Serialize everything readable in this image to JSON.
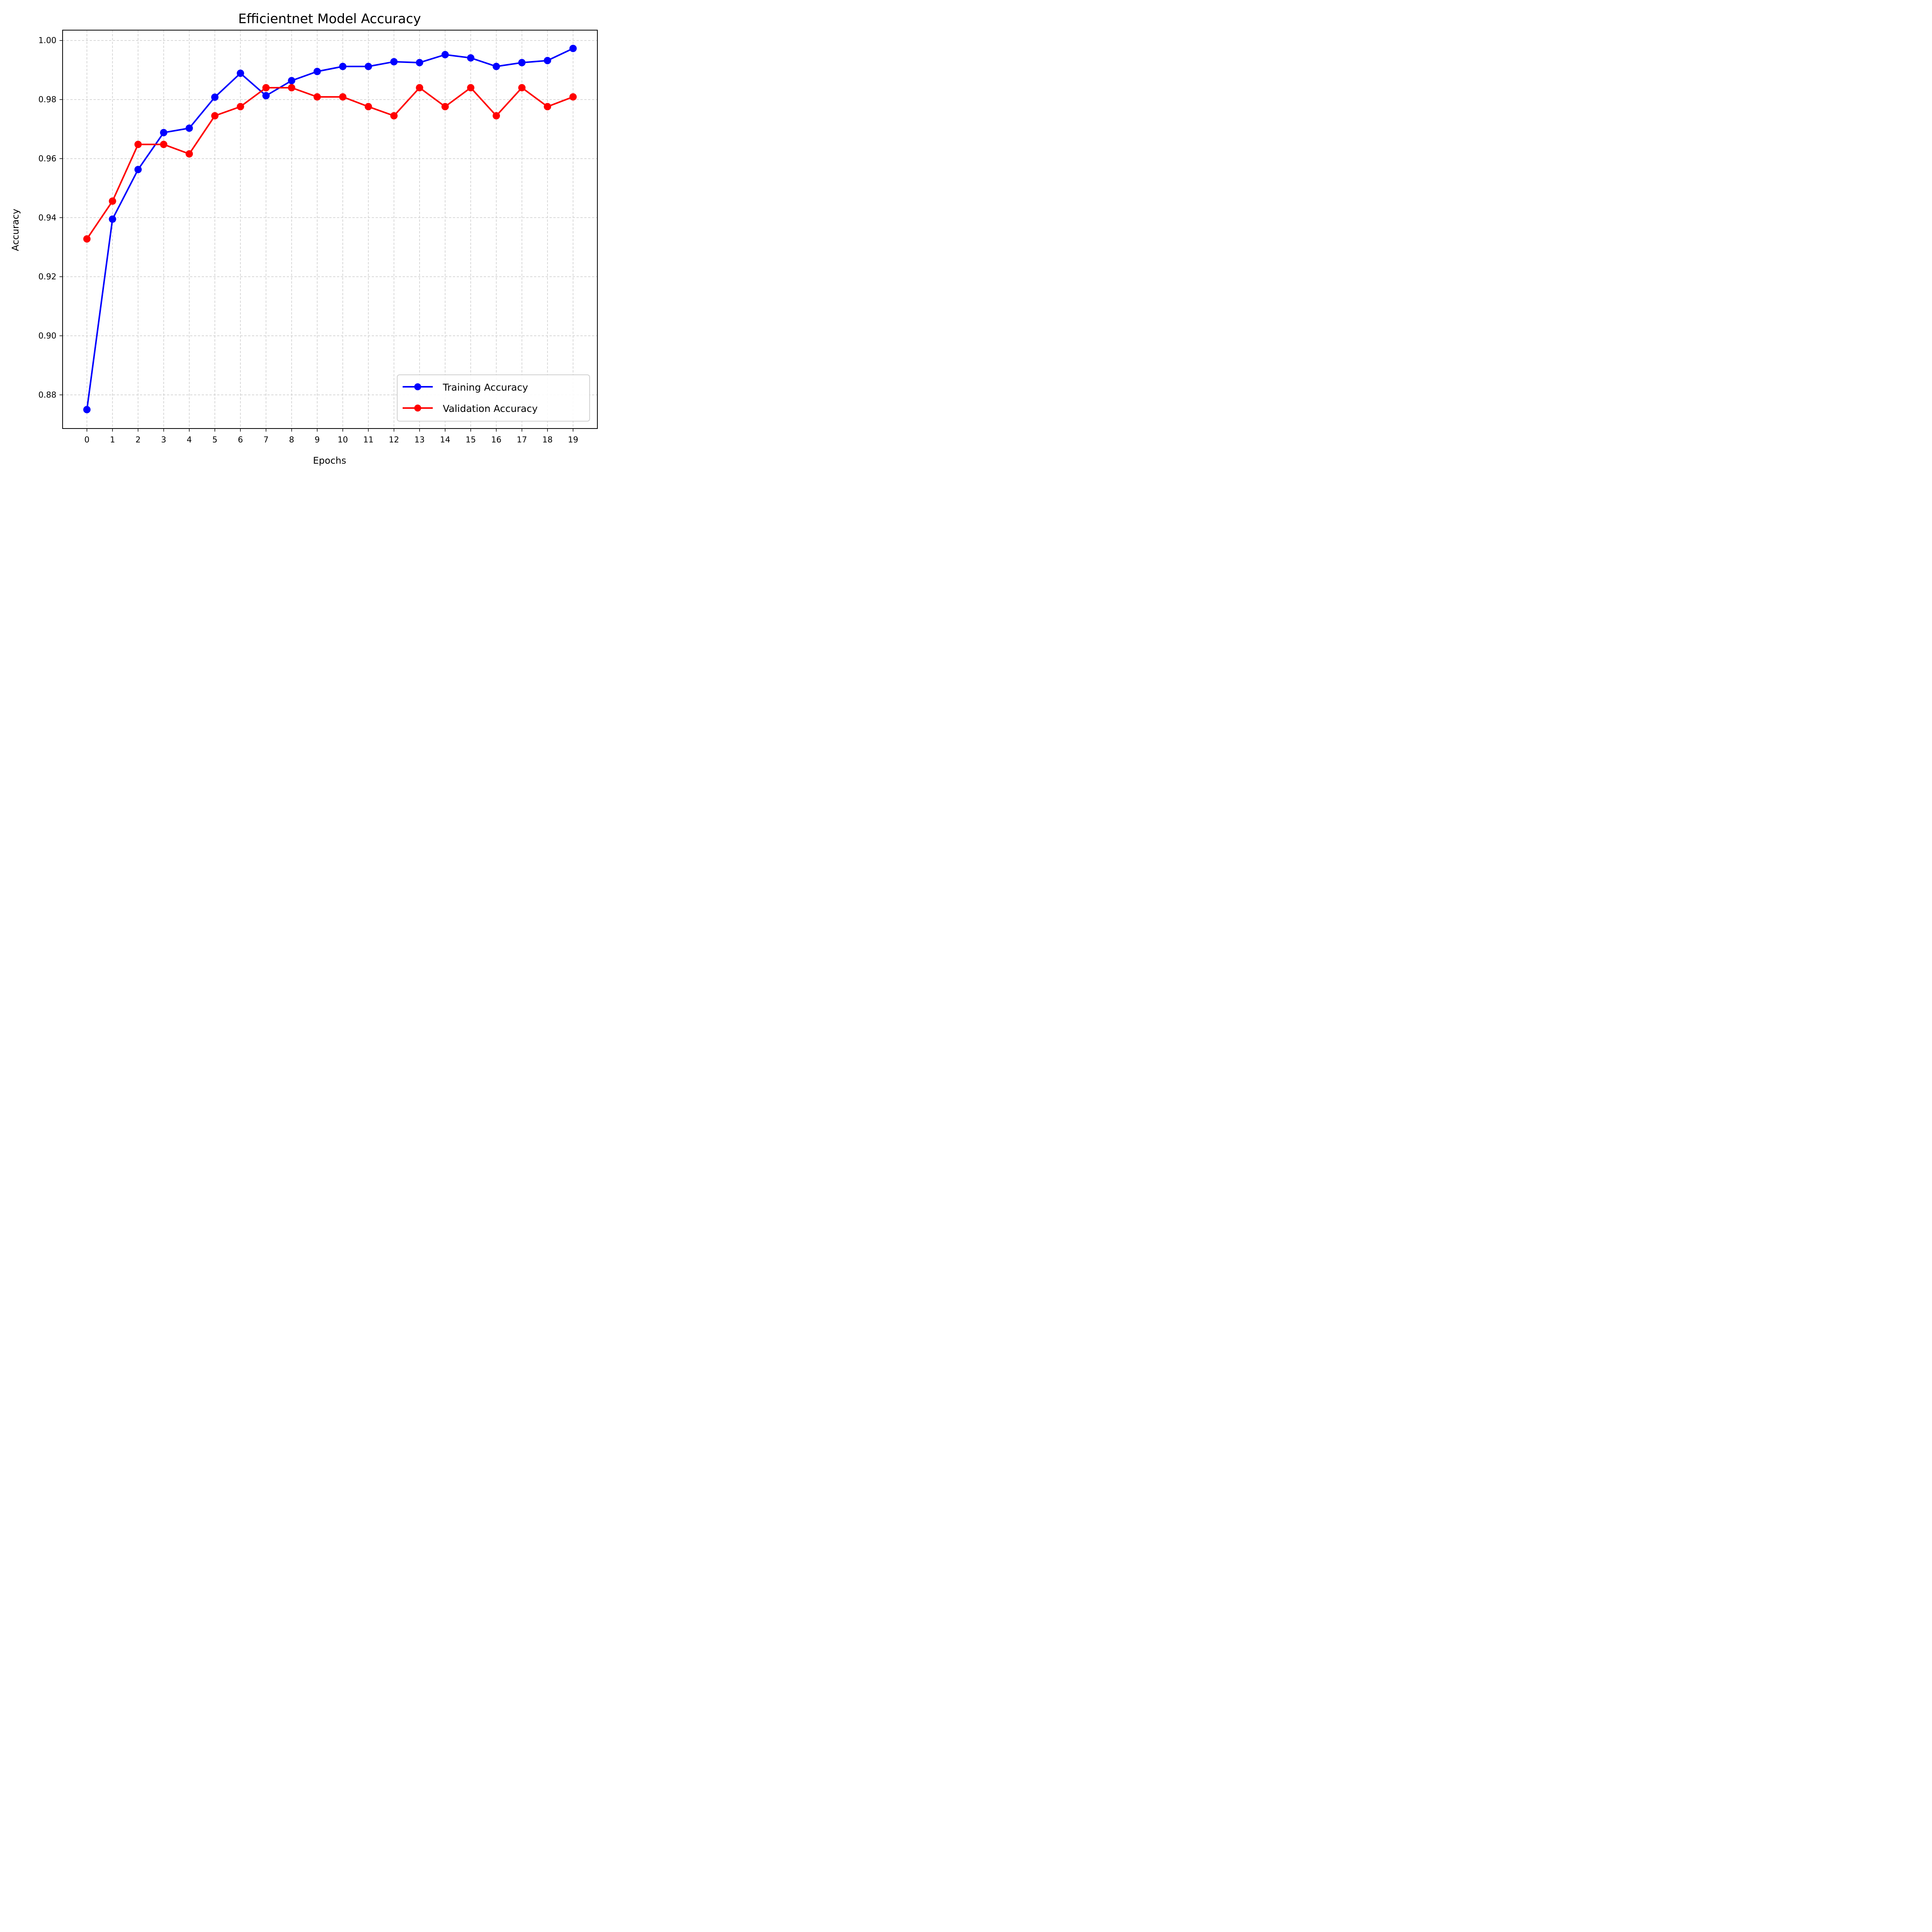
{
  "chart_data": {
    "type": "line",
    "title": "Efficientnet Model Accuracy",
    "xlabel": "Epochs",
    "ylabel": "Accuracy",
    "x": [
      0,
      1,
      2,
      3,
      4,
      5,
      6,
      7,
      8,
      9,
      10,
      11,
      12,
      13,
      14,
      15,
      16,
      17,
      18,
      19
    ],
    "xticks": [
      "0",
      "1",
      "2",
      "3",
      "4",
      "5",
      "6",
      "7",
      "8",
      "9",
      "10",
      "11",
      "12",
      "13",
      "14",
      "15",
      "16",
      "17",
      "18",
      "19"
    ],
    "yticks": [
      "0.88",
      "0.90",
      "0.92",
      "0.94",
      "0.96",
      "0.98",
      "1.00"
    ],
    "ylim": [
      0.8686,
      1.0035
    ],
    "xlim": [
      -0.95,
      19.95
    ],
    "grid": true,
    "legend_position": "lower right",
    "series": [
      {
        "name": "Training Accuracy",
        "color": "#0000ff",
        "values": [
          0.875,
          0.9395,
          0.9563,
          0.9688,
          0.9703,
          0.9808,
          0.9889,
          0.9813,
          0.9864,
          0.9895,
          0.9912,
          0.9912,
          0.9928,
          0.9925,
          0.9952,
          0.9941,
          0.9912,
          0.9925,
          0.9932,
          0.9973
        ]
      },
      {
        "name": "Validation Accuracy",
        "color": "#ff0000",
        "values": [
          0.9328,
          0.9456,
          0.9648,
          0.9648,
          0.9616,
          0.9745,
          0.9776,
          0.984,
          0.984,
          0.9809,
          0.9809,
          0.9776,
          0.9745,
          0.984,
          0.9776,
          0.984,
          0.9745,
          0.984,
          0.9776,
          0.9809
        ]
      }
    ]
  }
}
